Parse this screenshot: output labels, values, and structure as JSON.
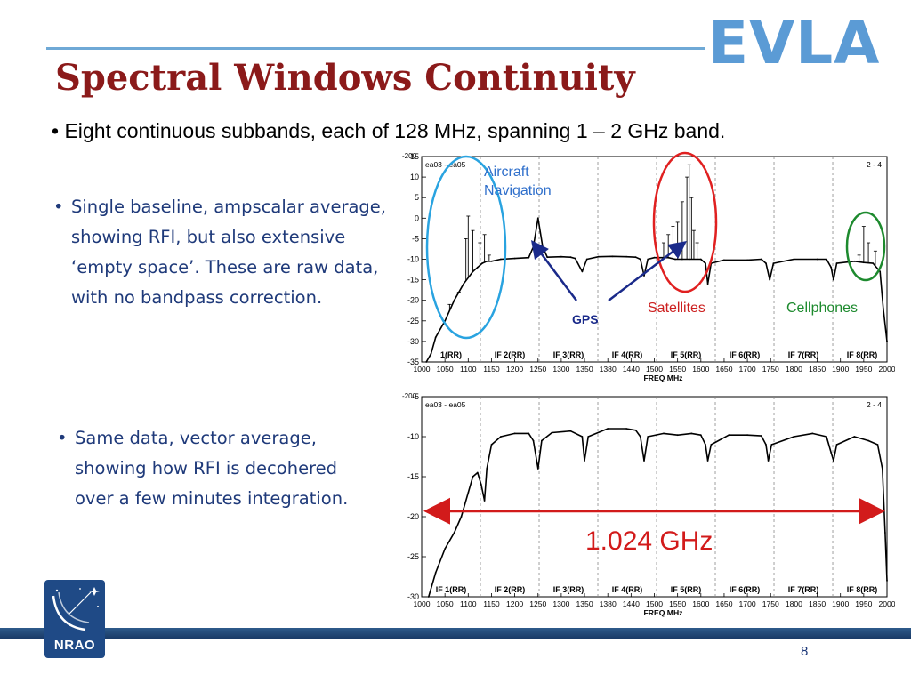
{
  "header": {
    "title": "Spectral Windows Continuity",
    "logo": "EVLA"
  },
  "bullets": {
    "main": "Eight continuous subbands, each of 128 MHz, spanning 1 – 2 GHz band.",
    "note1": "Single baseline, ampscalar average, showing RFI, but also extensive ‘empty space’. These are raw data, with no bandpass correction.",
    "note2": "Same data, vector average, showing how RFI is decohered over a few minutes integration.",
    "marker": "•"
  },
  "annotations": {
    "aircraft": "Aircraft",
    "navigation": "Navigation",
    "satellites": "Satellites",
    "cellphones": "Cellphones",
    "gps": "GPS",
    "span": "1.024 GHz"
  },
  "footer": {
    "page": "8",
    "org": "NRAO"
  },
  "colors": {
    "title": "#8b1a1a",
    "accent": "#5b9bd5",
    "text": "#1f3a7a",
    "red": "#d21b1b",
    "green": "#1d8a2e",
    "blue_circle": "#29a3e0"
  },
  "chart_data": [
    {
      "type": "line",
      "id": "ampscalar",
      "title": "",
      "tag_left": "ea03 - ea05",
      "tag_right": "2 - 4",
      "ylabel_top": "-200",
      "xlabel": "FREQ MHz",
      "xlim": [
        1000,
        2000
      ],
      "ylim": [
        -35,
        15
      ],
      "x_ticks": [
        "1000",
        "1050",
        "1100",
        "1150",
        "1200",
        "1250",
        "1300",
        "1350",
        "1380",
        "1440",
        "1500",
        "1550",
        "1600",
        "1650",
        "1700",
        "1750",
        "1800",
        "1850",
        "1900",
        "1950",
        "2000"
      ],
      "y_ticks": [
        "15",
        "10",
        "5",
        "0",
        "-5",
        "-10",
        "-15",
        "-20",
        "-25",
        "-30",
        "-35"
      ],
      "if_labels": [
        "1(RR)",
        "IF 2(RR)",
        "IF 3(RR)",
        "IF 4(RR)",
        "IF 5(RR)",
        "IF 6(RR)",
        "IF 7(RR)",
        "IF 8(RR)"
      ],
      "series": [
        {
          "values": [
            [
              1010,
              -35
            ],
            [
              1020,
              -33
            ],
            [
              1030,
              -29
            ],
            [
              1050,
              -25
            ],
            [
              1070,
              -20
            ],
            [
              1090,
              -16
            ],
            [
              1110,
              -13
            ],
            [
              1120,
              -12
            ],
            [
              1130,
              -11
            ],
            [
              1140,
              -10.5
            ],
            [
              1150,
              -10.5
            ],
            [
              1170,
              -10
            ],
            [
              1200,
              -9.8
            ],
            [
              1230,
              -9.6
            ],
            [
              1240,
              -7
            ],
            [
              1250,
              0
            ],
            [
              1260,
              -7
            ],
            [
              1270,
              -9.5
            ],
            [
              1300,
              -9.4
            ],
            [
              1320,
              -9.5
            ],
            [
              1330,
              -9.8
            ],
            [
              1345,
              -13
            ],
            [
              1355,
              -10
            ],
            [
              1380,
              -9.4
            ],
            [
              1410,
              -9.3
            ],
            [
              1440,
              -9.4
            ],
            [
              1460,
              -9.5
            ],
            [
              1470,
              -10
            ],
            [
              1478,
              -14
            ],
            [
              1486,
              -10
            ],
            [
              1500,
              -9.6
            ],
            [
              1530,
              -9.6
            ],
            [
              1545,
              -10
            ],
            [
              1560,
              -10
            ],
            [
              1575,
              -10
            ],
            [
              1600,
              -10
            ],
            [
              1610,
              -11
            ],
            [
              1615,
              -16
            ],
            [
              1622,
              -11
            ],
            [
              1650,
              -10.2
            ],
            [
              1700,
              -10.2
            ],
            [
              1730,
              -10
            ],
            [
              1740,
              -11
            ],
            [
              1748,
              -15
            ],
            [
              1756,
              -11
            ],
            [
              1800,
              -10
            ],
            [
              1850,
              -10
            ],
            [
              1870,
              -10
            ],
            [
              1880,
              -12
            ],
            [
              1885,
              -15
            ],
            [
              1892,
              -11
            ],
            [
              1930,
              -10.5
            ],
            [
              1950,
              -10.8
            ],
            [
              1970,
              -11
            ],
            [
              1985,
              -13
            ],
            [
              1992,
              -22
            ],
            [
              2000,
              -30
            ]
          ]
        }
      ],
      "rfi_spikes": [
        [
          1060,
          -21
        ],
        [
          1080,
          -18
        ],
        [
          1095,
          -5
        ],
        [
          1100,
          0.5
        ],
        [
          1110,
          -3
        ],
        [
          1125,
          -6
        ],
        [
          1135,
          -4
        ],
        [
          1145,
          -9
        ],
        [
          1520,
          -6
        ],
        [
          1530,
          -4
        ],
        [
          1540,
          -2
        ],
        [
          1550,
          -1
        ],
        [
          1560,
          4
        ],
        [
          1570,
          10
        ],
        [
          1575,
          13
        ],
        [
          1580,
          5
        ],
        [
          1585,
          -3
        ],
        [
          1592,
          -6
        ],
        [
          1940,
          -9
        ],
        [
          1950,
          -2
        ],
        [
          1960,
          -6
        ],
        [
          1975,
          -8
        ]
      ]
    },
    {
      "type": "line",
      "id": "vector",
      "title": "",
      "tag_left": "ea03 - ea05",
      "tag_right": "2 - 4",
      "ylabel_top": "-200",
      "xlabel": "FREQ MHz",
      "xlim": [
        1000,
        2000
      ],
      "ylim": [
        -30,
        -5
      ],
      "x_ticks": [
        "1000",
        "1050",
        "1100",
        "1150",
        "1200",
        "1250",
        "1300",
        "1350",
        "1380",
        "1440",
        "1500",
        "1550",
        "1600",
        "1650",
        "1700",
        "1750",
        "1800",
        "1850",
        "1900",
        "1950",
        "2000"
      ],
      "y_ticks": [
        "-5",
        "-10",
        "-15",
        "-20",
        "-25",
        "-30"
      ],
      "if_labels": [
        "IF 1(RR)",
        "IF 2(RR)",
        "IF 3(RR)",
        "IF 4(RR)",
        "IF 5(RR)",
        "IF 6(RR)",
        "IF 7(RR)",
        "IF 8(RR)"
      ],
      "series": [
        {
          "values": [
            [
              1015,
              -30
            ],
            [
              1030,
              -27
            ],
            [
              1050,
              -24
            ],
            [
              1070,
              -22
            ],
            [
              1085,
              -20
            ],
            [
              1100,
              -17
            ],
            [
              1110,
              -15
            ],
            [
              1120,
              -14.5
            ],
            [
              1128,
              -16
            ],
            [
              1135,
              -18
            ],
            [
              1140,
              -14
            ],
            [
              1150,
              -11
            ],
            [
              1170,
              -10
            ],
            [
              1200,
              -9.6
            ],
            [
              1230,
              -9.6
            ],
            [
              1240,
              -10.5
            ],
            [
              1250,
              -14
            ],
            [
              1258,
              -10.5
            ],
            [
              1280,
              -9.5
            ],
            [
              1320,
              -9.3
            ],
            [
              1345,
              -10
            ],
            [
              1350,
              -13
            ],
            [
              1358,
              -10
            ],
            [
              1400,
              -9
            ],
            [
              1440,
              -9
            ],
            [
              1460,
              -9.2
            ],
            [
              1470,
              -10
            ],
            [
              1478,
              -13
            ],
            [
              1486,
              -10
            ],
            [
              1520,
              -9.6
            ],
            [
              1550,
              -9.8
            ],
            [
              1580,
              -9.6
            ],
            [
              1600,
              -9.8
            ],
            [
              1610,
              -11
            ],
            [
              1615,
              -13
            ],
            [
              1622,
              -11
            ],
            [
              1660,
              -9.8
            ],
            [
              1700,
              -9.8
            ],
            [
              1730,
              -9.9
            ],
            [
              1740,
              -11
            ],
            [
              1745,
              -13
            ],
            [
              1752,
              -11
            ],
            [
              1800,
              -10
            ],
            [
              1840,
              -9.6
            ],
            [
              1870,
              -10
            ],
            [
              1880,
              -12
            ],
            [
              1885,
              -13
            ],
            [
              1892,
              -11
            ],
            [
              1930,
              -10
            ],
            [
              1960,
              -10.5
            ],
            [
              1980,
              -11
            ],
            [
              1990,
              -14
            ],
            [
              1996,
              -22
            ],
            [
              2000,
              -28
            ]
          ]
        }
      ],
      "span_arrow": {
        "from": 1000,
        "to": 2000,
        "y": -19.3
      }
    }
  ]
}
